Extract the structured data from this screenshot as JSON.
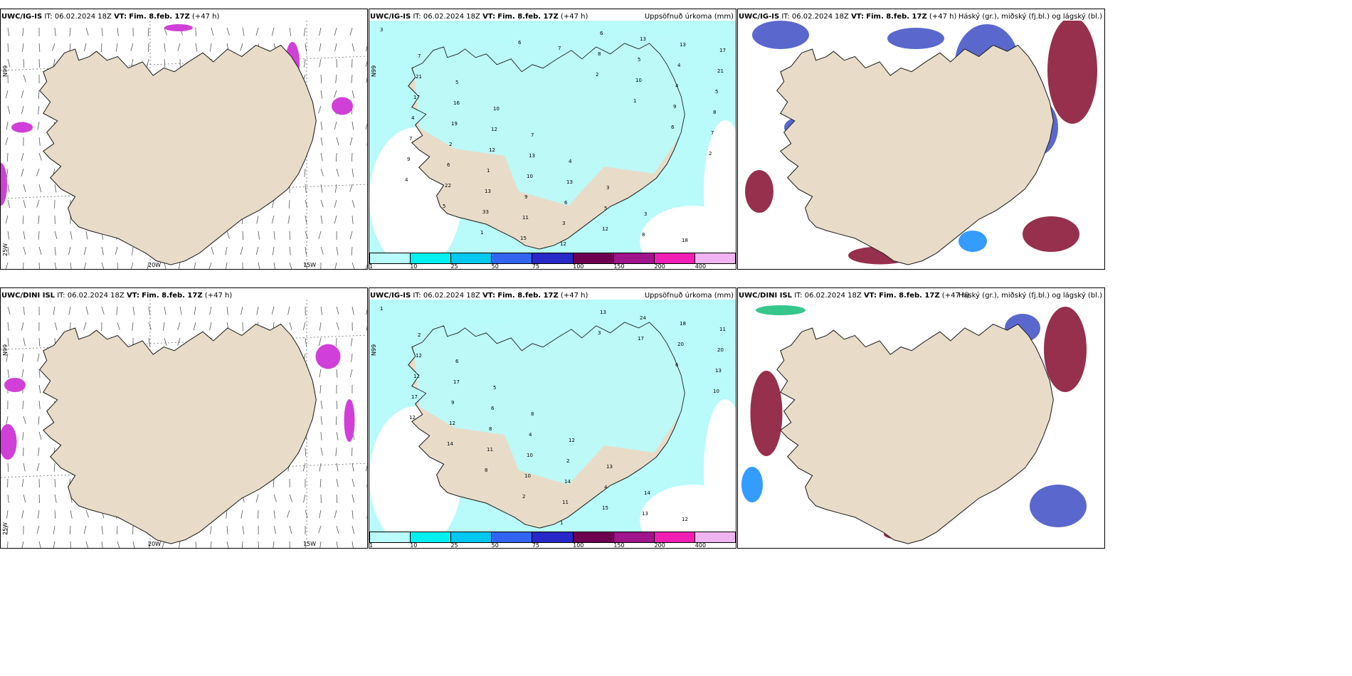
{
  "panels": [
    {
      "row": 0,
      "col": 0,
      "model_label": "UWC/IG-IS",
      "it_label": "IT:",
      "it_value": "06.02.2024 18Z",
      "vt_label": "VT:",
      "vt_value": "Fim. 8.feb. 17Z",
      "lead": "(+47 h)",
      "right_title": "",
      "lon_labels": [
        "20W",
        "15W"
      ],
      "lat_labels": [
        "N99",
        "25W"
      ]
    },
    {
      "row": 0,
      "col": 1,
      "model_label": "UWC/IG-IS",
      "it_label": "IT:",
      "it_value": "06.02.2024 18Z",
      "vt_label": "VT:",
      "vt_value": "Fim. 8.feb. 17Z",
      "lead": "(+47 h)",
      "right_title": "Uppsöfnuð úrkoma (mm)",
      "lon_labels": [],
      "lat_labels": [
        "N99"
      ]
    },
    {
      "row": 0,
      "col": 2,
      "model_label": "UWC/IG-IS",
      "it_label": "IT:",
      "it_value": "06.02.2024 18Z",
      "vt_label": "VT:",
      "vt_value": "Fim. 8.feb. 17Z",
      "lead": "(+47 h)",
      "right_title": "Háský (gr.), miðský (fj.bl.) og lágský (bl.)",
      "lon_labels": [],
      "lat_labels": []
    },
    {
      "row": 1,
      "col": 0,
      "model_label": "UWC/DINI ISL",
      "it_label": "IT:",
      "it_value": "06.02.2024 18Z",
      "vt_label": "VT:",
      "vt_value": "Fim. 8.feb. 17Z",
      "lead": "(+47 h)",
      "right_title": "",
      "lon_labels": [
        "20W",
        "15W"
      ],
      "lat_labels": [
        "N99",
        "25W"
      ]
    },
    {
      "row": 1,
      "col": 1,
      "model_label": "UWC/IG-IS",
      "it_label": "IT:",
      "it_value": "06.02.2024 18Z",
      "vt_label": "VT:",
      "vt_value": "Fim. 8.feb. 17Z",
      "lead": "(+47 h)",
      "right_title": "Uppsöfnuð úrkoma (mm)",
      "lon_labels": [],
      "lat_labels": [
        "N99"
      ]
    },
    {
      "row": 1,
      "col": 2,
      "model_label": "UWC/DINI ISL",
      "it_label": "IT:",
      "it_value": "06.02.2024 18Z",
      "vt_label": "VT:",
      "vt_value": "Fim. 8.feb. 17Z",
      "lead": "(+47 h)",
      "right_title": "Háský (gr.), miðský (fj.bl.) og lágský (bl.)",
      "lon_labels": [],
      "lat_labels": []
    }
  ],
  "precip_colorbar": {
    "labels": [
      "1",
      "10",
      "25",
      "50",
      "75",
      "100",
      "150",
      "200",
      "400"
    ],
    "colors": [
      "#b9fafa",
      "#00f0f0",
      "#00c8f0",
      "#3264f0",
      "#2828c8",
      "#6e0050",
      "#a0148c",
      "#f01eb4",
      "#f0b4f0"
    ]
  },
  "precip_values_top": [
    "3",
    "7",
    "5",
    "10",
    "7",
    "4",
    "3",
    "3",
    "18",
    "17",
    "21",
    "16",
    "12",
    "13",
    "13",
    "5",
    "8",
    "13",
    "21",
    "17",
    "19",
    "12",
    "10",
    "6",
    "12",
    "13",
    "4",
    "5",
    "4",
    "2",
    "1",
    "9",
    "3",
    "6",
    "5",
    "4",
    "8",
    "7",
    "6",
    "13",
    "11",
    "12",
    "8",
    "10",
    "9",
    "7",
    "9",
    "22",
    "33",
    "15",
    "7",
    "2",
    "1",
    "6",
    "2",
    "4",
    "5",
    "1",
    "6"
  ],
  "precip_values_bottom": [
    "1",
    "2",
    "6",
    "5",
    "8",
    "12",
    "13",
    "14",
    "12",
    "11",
    "12",
    "17",
    "6",
    "4",
    "2",
    "4",
    "13",
    "18",
    "20",
    "12",
    "9",
    "8",
    "10",
    "14",
    "15",
    "24",
    "20",
    "13",
    "17",
    "12",
    "11",
    "10",
    "11",
    "13",
    "17",
    "6",
    "10",
    "12",
    "14",
    "8",
    "2",
    "1",
    "3"
  ],
  "colors": {
    "land": "#e8dcc8",
    "precip_light": "#b9fafa",
    "precip_mid": "#00f0f0",
    "cloud_high": "#8b1a3a",
    "cloud_mid": "#4858c8",
    "cloud_low": "#1e90ff",
    "wind_precip": "#d040d8"
  }
}
